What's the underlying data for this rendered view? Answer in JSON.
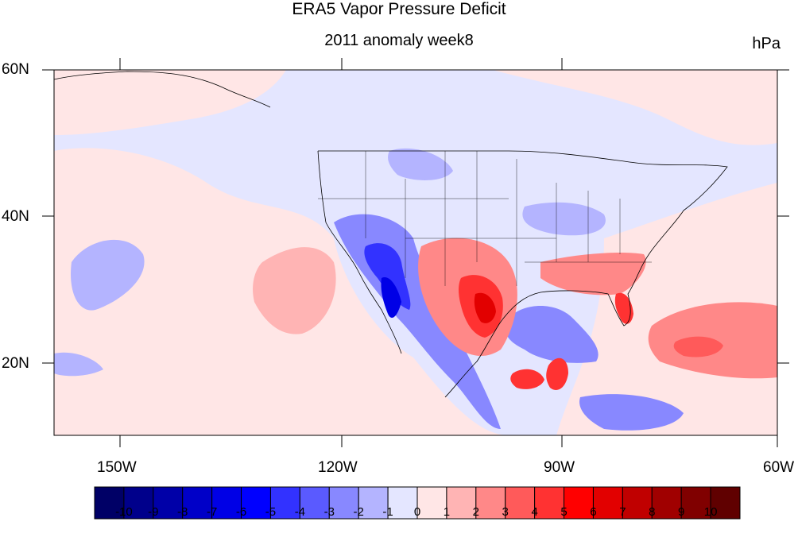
{
  "title": "ERA5 Vapor Pressure Deficit",
  "subtitle": "2011 anomaly week8",
  "units": "hPa",
  "lat_labels": [
    "60N",
    "40N",
    "20N"
  ],
  "lon_labels": [
    "150W",
    "120W",
    "90W",
    "60W"
  ],
  "colorbar": {
    "labels": [
      "-10",
      "-9",
      "-8",
      "-7",
      "-6",
      "-5",
      "-4",
      "-3",
      "-2",
      "-1",
      "0",
      "1",
      "2",
      "3",
      "4",
      "5",
      "6",
      "7",
      "8",
      "9",
      "10"
    ],
    "colors": [
      "#000066",
      "#00008b",
      "#0000a8",
      "#0000c8",
      "#0000e6",
      "#0000ff",
      "#3232ff",
      "#5a5aff",
      "#8888ff",
      "#b4b4ff",
      "#e4e6ff",
      "#ffe6e6",
      "#ffb4b4",
      "#ff8888",
      "#ff5a5a",
      "#ff3232",
      "#ff0000",
      "#e20000",
      "#c00000",
      "#a00000",
      "#800000",
      "#600000"
    ]
  },
  "chart_data": {
    "type": "heatmap",
    "title": "ERA5 Vapor Pressure Deficit",
    "subtitle": "2011 anomaly week8",
    "units": "hPa",
    "lat_range": [
      10,
      60
    ],
    "lon_range": [
      -160,
      -60
    ],
    "lat_ticks": [
      "60N",
      "40N",
      "20N"
    ],
    "lon_ticks": [
      "150W",
      "120W",
      "90W",
      "60W"
    ],
    "levels": [
      -10,
      -9,
      -8,
      -7,
      -6,
      -5,
      -4,
      -3,
      -2,
      -1,
      0,
      1,
      2,
      3,
      4,
      5,
      6,
      7,
      8,
      9,
      10
    ]
  }
}
